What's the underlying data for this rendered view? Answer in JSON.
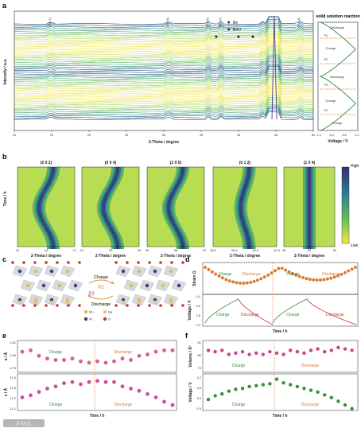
{
  "panels": {
    "a": {
      "label": "a",
      "ylabel": "Intensity / a.u.",
      "xlabel": "2-Theta / degree",
      "xticks": [
        "10",
        "15",
        "20",
        "25",
        "30",
        "35",
        "40",
        "45",
        "50"
      ],
      "peaks": [
        "(0 0 2)",
        "(0 0 4)",
        "(1 0 1)",
        "(0 1 2)",
        "(1 0 4)"
      ],
      "legend": [
        {
          "marker": "★",
          "label": "Be"
        },
        {
          "marker": "★",
          "label": "BeO"
        }
      ],
      "side": {
        "title": "solid solution reaction",
        "xlabel": "Voltage / V",
        "xticks": [
          "2.4",
          "3.0",
          "3.6",
          "4.2"
        ],
        "labels": [
          "Discharge",
          "P2",
          "Charge",
          "P2",
          "Discharge",
          "P2",
          "Charge",
          "P2",
          "Charge"
        ]
      }
    },
    "b": {
      "label": "b",
      "ylabel": "Time / h",
      "xlabel": "2-Theta / degree",
      "subpanels": [
        {
          "title": "(0 0 2)",
          "ticks": [
            "15",
            "16",
            "17"
          ]
        },
        {
          "title": "(0 0 4)",
          "ticks": [
            "31",
            "32",
            "33"
          ]
        },
        {
          "title": "(1 0 0)",
          "ticks": [
            "35",
            "36",
            "37"
          ]
        },
        {
          "title": "(0 1 2)",
          "ticks": [
            "39.0",
            "39.5",
            "40.0",
            "40.5"
          ]
        },
        {
          "title": "(1 0 4)",
          "ticks": [
            "48",
            "49",
            "50"
          ]
        }
      ],
      "colorbar": {
        "high": "High",
        "low": "Low"
      }
    },
    "c": {
      "label": "c",
      "charge": "Charge",
      "discharge": "Discharge",
      "phase1": "P2",
      "phase2": "P2",
      "legend": [
        {
          "label": "Mn",
          "color": "#d8c04a"
        },
        {
          "label": "Na",
          "color": "#e8c080"
        },
        {
          "label": "Ni",
          "color": "#3a3f70"
        },
        {
          "label": "O",
          "color": "#c0392b"
        }
      ]
    },
    "d": {
      "label": "d",
      "top_ylabel": "Strain G",
      "bottom_ylabel": "Voltage / V",
      "bottom_yticks": [
        "4.4",
        "3.6",
        "2.8",
        "2.4"
      ],
      "xlabel": "Time / h",
      "labels": [
        "Charge",
        "Discharge",
        "Charge",
        "Discharge"
      ]
    },
    "e": {
      "label": "e",
      "top_ylabel": "a / Å",
      "top_yticks": [
        "2.81",
        "2.80",
        "2.79"
      ],
      "bottom_ylabel": "c / Å",
      "bottom_yticks": [
        "11.4",
        "11.3",
        "11.2",
        "11.1"
      ],
      "xlabel": "Time / h",
      "labels": [
        "Charge",
        "Discharge",
        "Charge",
        "Discharge"
      ]
    },
    "f": {
      "label": "f",
      "top_ylabel": "Volume / Å³",
      "top_yticks": [
        "81",
        "80",
        "79"
      ],
      "bottom_ylabel": "Voltage / V",
      "bottom_yticks": [
        "4.2",
        "3.6",
        "3.0",
        "2.4"
      ],
      "xlabel": "Time / h",
      "labels": [
        "Charge",
        "Discharge",
        "Charge",
        "Discharge"
      ]
    }
  },
  "watermark": "X-MOL"
}
